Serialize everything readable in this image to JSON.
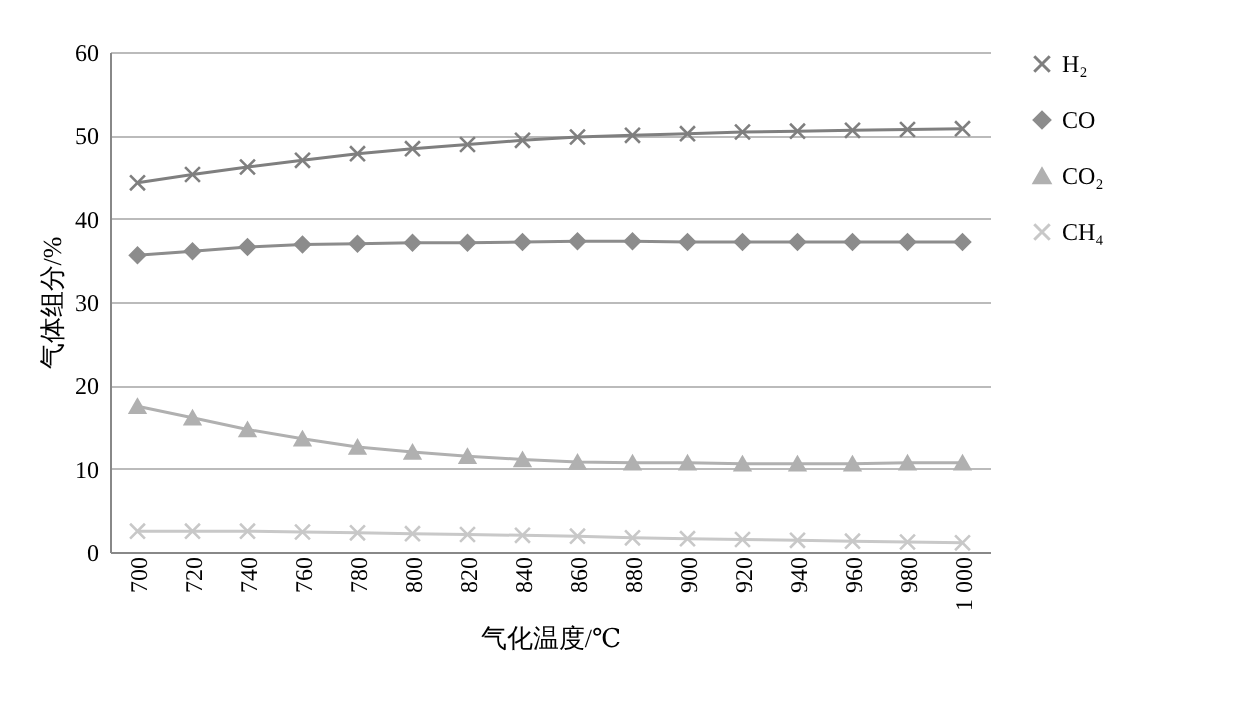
{
  "chart_data": {
    "type": "line",
    "xlabel": "气化温度/℃",
    "ylabel": "气体组分/%",
    "categories": [
      "700",
      "720",
      "740",
      "760",
      "780",
      "800",
      "820",
      "840",
      "860",
      "880",
      "900",
      "920",
      "940",
      "960",
      "980",
      "1 000"
    ],
    "series": [
      {
        "name": "H₂",
        "color": "#7f7f7f",
        "marker": "cross",
        "values": [
          44.3,
          45.3,
          46.2,
          47.0,
          47.8,
          48.4,
          48.9,
          49.4,
          49.8,
          50.0,
          50.2,
          50.4,
          50.5,
          50.6,
          50.7,
          50.8
        ]
      },
      {
        "name": "CO",
        "color": "#8c8c8c",
        "marker": "diamond",
        "values": [
          35.6,
          36.1,
          36.6,
          36.9,
          37.0,
          37.1,
          37.1,
          37.2,
          37.3,
          37.3,
          37.2,
          37.2,
          37.2,
          37.2,
          37.2,
          37.2
        ]
      },
      {
        "name": "CO₂",
        "color": "#b0b0b0",
        "marker": "triangle",
        "values": [
          17.5,
          16.1,
          14.7,
          13.6,
          12.6,
          12.0,
          11.5,
          11.1,
          10.8,
          10.7,
          10.7,
          10.6,
          10.6,
          10.6,
          10.7,
          10.7
        ]
      },
      {
        "name": "CH₄",
        "color": "#c8c8c8",
        "marker": "cross",
        "values": [
          2.5,
          2.5,
          2.5,
          2.4,
          2.3,
          2.2,
          2.1,
          2.0,
          1.9,
          1.7,
          1.6,
          1.5,
          1.4,
          1.3,
          1.2,
          1.1
        ]
      }
    ],
    "ylim": [
      0,
      60
    ],
    "yticks": [
      0,
      10,
      20,
      30,
      40,
      50,
      60
    ],
    "grid": "y",
    "legend": "right"
  }
}
